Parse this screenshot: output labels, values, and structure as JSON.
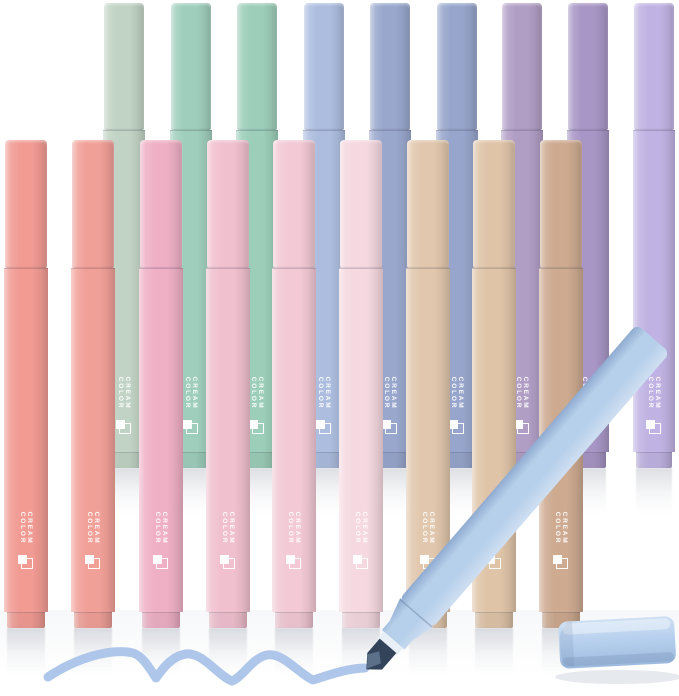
{
  "scene": {
    "description": "Product photo of a pastel chisel-tip highlighter set: two standing rows of square-barrel pens, one light-blue pen held diagonally drawing a wavy line, and its cap lying on the surface.",
    "background_color": "#ffffff"
  },
  "brand": {
    "line1": "CREAM",
    "line2": "COLOR",
    "text_color": "#ffffff",
    "logo": "square-in-frame"
  },
  "back_row_pens": [
    {
      "name": "sage-green",
      "color": "#c1d3c4"
    },
    {
      "name": "mint-teal",
      "color": "#9fcebc"
    },
    {
      "name": "seafoam-teal",
      "color": "#9cceb9"
    },
    {
      "name": "periwinkle",
      "color": "#acbddf"
    },
    {
      "name": "slate-blue",
      "color": "#99a7cd"
    },
    {
      "name": "slate-blue-2",
      "color": "#97a5cc"
    },
    {
      "name": "mauve-purple",
      "color": "#b19ec5"
    },
    {
      "name": "violet-purple",
      "color": "#a896c6"
    },
    {
      "name": "light-lavender",
      "color": "#c0b3e3"
    }
  ],
  "front_row_pens": [
    {
      "name": "coral-pink",
      "color": "#f19b93"
    },
    {
      "name": "salmon-coral",
      "color": "#f1a098"
    },
    {
      "name": "rose-pink",
      "color": "#efb0c5"
    },
    {
      "name": "pink",
      "color": "#f1c0cf"
    },
    {
      "name": "light-pink",
      "color": "#f2c9d5"
    },
    {
      "name": "pale-blush",
      "color": "#f5d8e0"
    },
    {
      "name": "light-tan",
      "color": "#e1c7ad"
    },
    {
      "name": "beige",
      "color": "#dfc4a8"
    },
    {
      "name": "taupe-brown",
      "color": "#cdaa90"
    }
  ],
  "foreground_pen": {
    "name": "light-blue",
    "color_light": "#cfdff2",
    "color_mid": "#b6cfea",
    "color_deep": "#8fabd0",
    "ferrule_color": "#e9eff6",
    "nib_color": "#33435a",
    "nib_face_color": "#7e96b3"
  },
  "cap": {
    "color_top": "#cfe0f3",
    "color_mid": "#b7d0ee",
    "color_bottom": "#9dbade"
  },
  "ink_squiggle": {
    "color": "#aec6ea"
  }
}
